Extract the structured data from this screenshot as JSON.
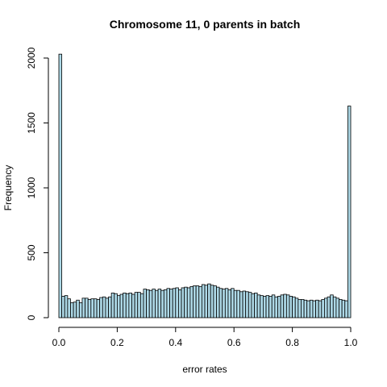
{
  "chart_data": {
    "type": "bar",
    "title": "Chromosome 11, 0 parents in batch",
    "xlabel": "error rates",
    "ylabel": "Frequency",
    "xlim": [
      0,
      1
    ],
    "ylim": [
      0,
      2000
    ],
    "bin_width": 0.01,
    "bin_start": 0.0,
    "x_ticks": [
      0.0,
      0.2,
      0.4,
      0.6,
      0.8,
      1.0
    ],
    "x_tick_labels": [
      "0.0",
      "0.2",
      "0.4",
      "0.6",
      "0.8",
      "1.0"
    ],
    "y_ticks": [
      0,
      500,
      1000,
      1500,
      2000
    ],
    "y_tick_labels": [
      "0",
      "500",
      "1000",
      "1500",
      "2000"
    ],
    "bar_fill": "#add8e6",
    "values": [
      2030,
      165,
      170,
      145,
      115,
      120,
      135,
      115,
      150,
      150,
      140,
      145,
      145,
      140,
      155,
      160,
      150,
      160,
      190,
      185,
      170,
      180,
      190,
      185,
      190,
      180,
      195,
      195,
      185,
      220,
      215,
      210,
      220,
      210,
      220,
      210,
      215,
      225,
      220,
      225,
      230,
      215,
      230,
      235,
      230,
      240,
      245,
      245,
      240,
      255,
      250,
      260,
      250,
      245,
      235,
      225,
      220,
      225,
      215,
      225,
      210,
      210,
      200,
      205,
      200,
      195,
      185,
      190,
      175,
      170,
      165,
      170,
      165,
      175,
      160,
      165,
      175,
      180,
      175,
      165,
      160,
      150,
      140,
      140,
      135,
      130,
      135,
      130,
      135,
      130,
      140,
      150,
      160,
      175,
      160,
      150,
      140,
      135,
      130,
      1630
    ]
  }
}
